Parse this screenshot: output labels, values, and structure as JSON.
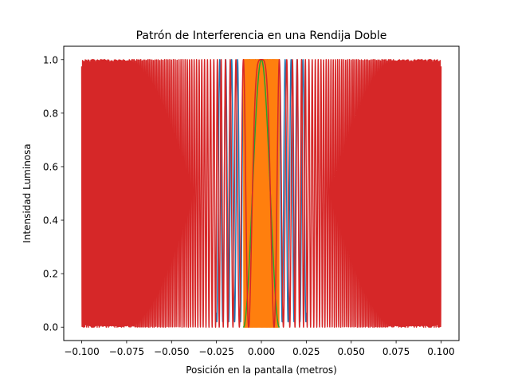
{
  "chart_data": {
    "type": "line",
    "title": "Patrón de Interferencia en una Rendija Doble",
    "xlabel": "Posición en la pantalla (metros)",
    "ylabel": "Intensidad Luminosa",
    "xlim": [
      -0.11,
      0.11
    ],
    "ylim": [
      -0.05,
      1.05
    ],
    "grid": false,
    "legend": "none",
    "x_ticks": [
      "−0.100",
      "−0.075",
      "−0.050",
      "−0.025",
      "0.000",
      "0.025",
      "0.050",
      "0.075",
      "0.100"
    ],
    "x_tick_values": [
      -0.1,
      -0.075,
      -0.05,
      -0.025,
      0.0,
      0.025,
      0.05,
      0.075,
      0.1
    ],
    "y_ticks": [
      "0.0",
      "0.2",
      "0.4",
      "0.6",
      "0.8",
      "1.0"
    ],
    "y_tick_values": [
      0.0,
      0.2,
      0.4,
      0.6,
      0.8,
      1.0
    ],
    "series": [
      {
        "color": "#1f77b4",
        "x_range": [
          -0.025,
          0.025
        ],
        "model": "cos2",
        "k": 950,
        "floor": 0.02,
        "note_values": "y = floor + (1 - floor) * cos^2(k * x)"
      },
      {
        "color": "#ff7f0e",
        "x_range": [
          -0.01,
          0.01
        ],
        "model": "cos2",
        "k": 6000,
        "floor": 0.0
      },
      {
        "color": "#2ca02c",
        "x_range": [
          -0.01,
          0.01
        ],
        "model": "cos2",
        "k": 157,
        "floor": 0.0
      },
      {
        "color": "#d62728",
        "x_range": [
          -0.1,
          0.1
        ],
        "model": "chirp",
        "a": 31400,
        "floor": 0.0
      }
    ]
  }
}
